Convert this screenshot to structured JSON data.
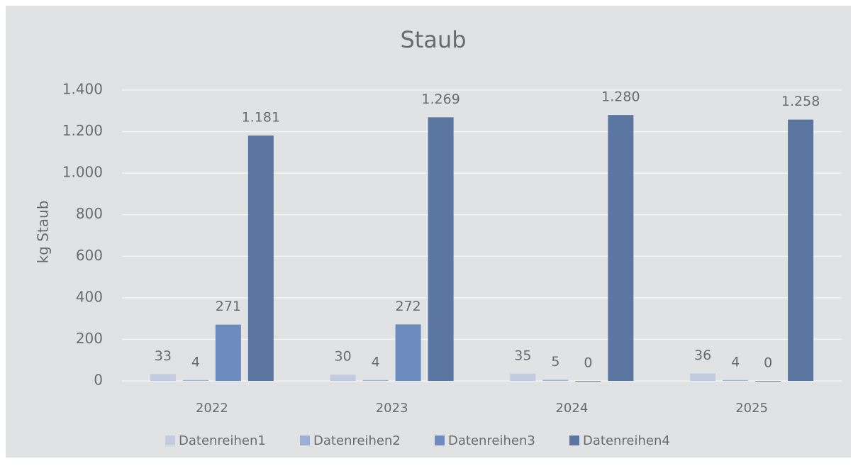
{
  "chart_data": {
    "type": "bar",
    "title": "Staub",
    "y_label": "kg Staub",
    "categories": [
      "2022",
      "2023",
      "2024",
      "2025"
    ],
    "series": [
      {
        "name": "Datenreihen1",
        "color": "#c3cbe0",
        "values": [
          33,
          30,
          35,
          36
        ]
      },
      {
        "name": "Datenreihen2",
        "color": "#9cb0d6",
        "values": [
          4,
          4,
          5,
          4
        ]
      },
      {
        "name": "Datenreihen3",
        "color": "#6c8cc0",
        "values": [
          271,
          272,
          0,
          0
        ]
      },
      {
        "name": "Datenreihen4",
        "color": "#5b76a0",
        "values": [
          1181,
          1269,
          1280,
          1258
        ],
        "value_labels": [
          "1.181",
          "1.269",
          "1.280",
          "1.258"
        ]
      }
    ],
    "ylim": [
      0,
      1400
    ],
    "yticks": [
      0,
      200,
      400,
      600,
      800,
      {
        "value": 1000,
        "label": "1.000"
      },
      {
        "value": 1200,
        "label": "1.200"
      },
      {
        "value": 1400,
        "label": "1.400"
      }
    ],
    "grid": true,
    "legend": "bottom"
  }
}
